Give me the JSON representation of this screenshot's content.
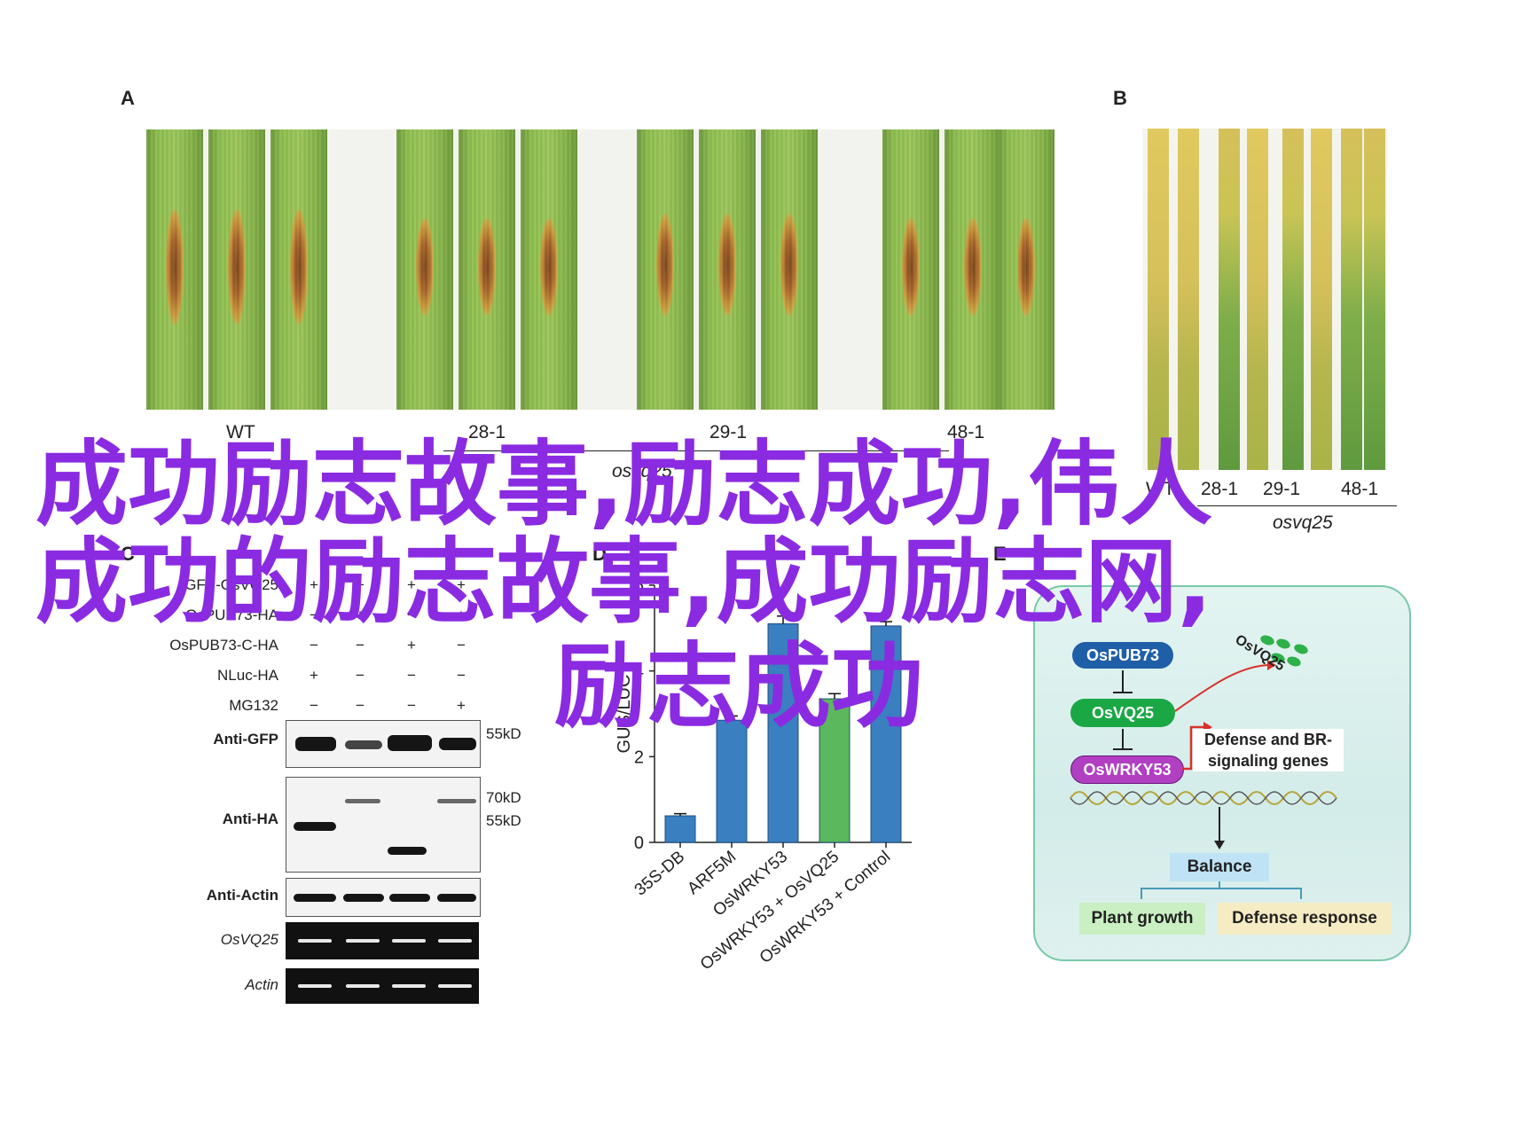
{
  "panel_a": {
    "letter": "A",
    "samples": [
      "WT",
      "28-1",
      "29-1",
      "48-1"
    ],
    "genotype": "osvq25"
  },
  "panel_b": {
    "letter": "B",
    "samples": [
      "WT",
      "28-1",
      "29-1",
      "48-1"
    ],
    "genotype": "osvq25"
  },
  "panel_c": {
    "letter": "C",
    "rows": [
      {
        "label": "GFP-OsVQ25",
        "signs": [
          "+",
          "+",
          "+",
          "+"
        ]
      },
      {
        "label": "OsPUB73-HA",
        "signs": [
          "−",
          "+",
          "−",
          "+"
        ]
      },
      {
        "label": "OsPUB73-C-HA",
        "signs": [
          "−",
          "−",
          "+",
          "−"
        ]
      },
      {
        "label": "NLuc-HA",
        "signs": [
          "+",
          "−",
          "−",
          "−"
        ]
      },
      {
        "label": "MG132",
        "signs": [
          "−",
          "−",
          "−",
          "+"
        ]
      }
    ],
    "blots": [
      "Anti-GFP",
      "Anti-HA",
      "Anti-Actin",
      "OsVQ25",
      "Actin"
    ],
    "markers": [
      "55kD",
      "70kD",
      "55kD"
    ]
  },
  "chart_data": {
    "type": "bar",
    "panel_letter": "D",
    "categories": [
      "35S-DB",
      "ARF5M",
      "OsWRKY53",
      "OsWRKY53 + OsVQ25",
      "OsWRKY53 + Control"
    ],
    "values": [
      0.62,
      2.85,
      5.1,
      3.35,
      5.05
    ],
    "errors": [
      0.05,
      0.1,
      0.18,
      0.12,
      0.1
    ],
    "bar_colors": [
      "#3a7fc0",
      "#3a7fc0",
      "#3a7fc0",
      "#5cb85c",
      "#3a7fc0"
    ],
    "ylabel": "GUS/LUC",
    "ylim": [
      0,
      6
    ],
    "yticks": [
      0,
      2,
      4,
      6
    ],
    "grid": false,
    "legend": "none"
  },
  "panel_e": {
    "letter": "E",
    "nodes": {
      "pub73": "OsPUB73",
      "vq25": "OsVQ25",
      "vq25_dots": "OsVQ25",
      "wrky53": "OsWRKY53",
      "genes": "Defense and BR-signaling genes",
      "balance": "Balance",
      "growth": "Plant growth",
      "defense": "Defense response"
    },
    "colors": {
      "pub73": "#1f5fa8",
      "vq25": "#1aa845",
      "wrky53": "#b03fc2",
      "arrow_red": "#d9312b"
    }
  },
  "overlay": {
    "line1": "成功励志故事,励志成功,伟人",
    "line2": "成功的励志故事,成功励志网,",
    "line3": "励志成功"
  }
}
